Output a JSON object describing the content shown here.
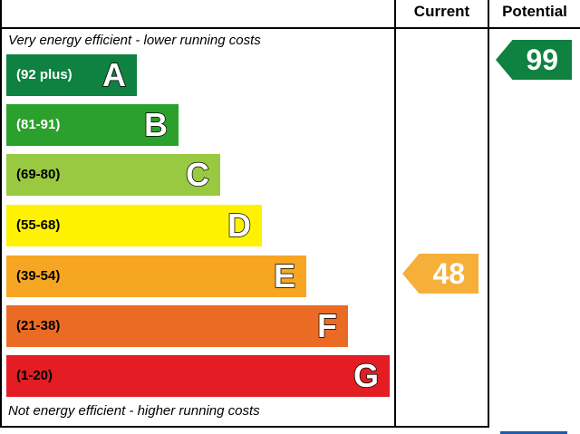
{
  "headers": {
    "current": "Current",
    "potential": "Potential"
  },
  "notes": {
    "top": "Very energy efficient - lower running costs",
    "bottom": "Not energy efficient - higher running costs"
  },
  "bands": [
    {
      "range": "(92 plus)",
      "letter": "A",
      "color": "#0f8140"
    },
    {
      "range": "(81-91)",
      "letter": "B",
      "color": "#2ca02c"
    },
    {
      "range": "(69-80)",
      "letter": "C",
      "color": "#99c940"
    },
    {
      "range": "(55-68)",
      "letter": "D",
      "color": "#fff200"
    },
    {
      "range": "(39-54)",
      "letter": "E",
      "color": "#f6a623"
    },
    {
      "range": "(21-38)",
      "letter": "F",
      "color": "#ec6b24"
    },
    {
      "range": "(1-20)",
      "letter": "G",
      "color": "#e31d23"
    }
  ],
  "current": {
    "value": "48",
    "band": "E",
    "color": "#f6b03a"
  },
  "potential": {
    "value": "99",
    "band": "A",
    "color": "#0f8140"
  }
}
